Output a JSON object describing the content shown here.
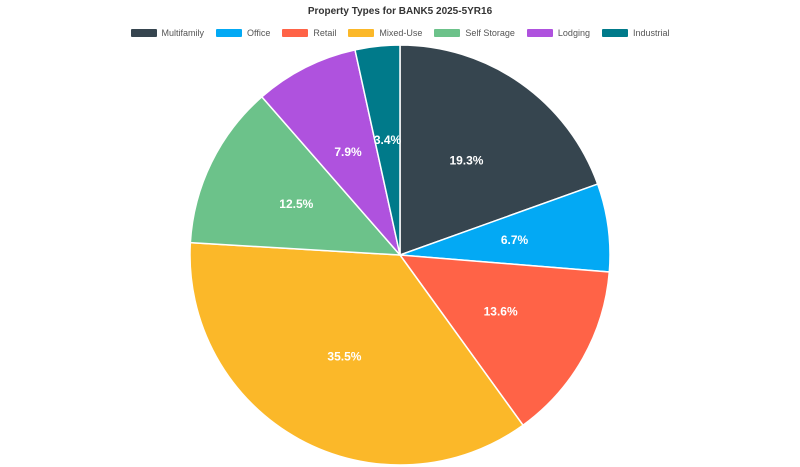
{
  "chart_data": {
    "type": "pie",
    "title": "Property Types for BANK5 2025-5YR16",
    "legend_placement": "top",
    "slices": [
      {
        "label": "Multifamily",
        "value": 19.3,
        "value_label": "19.3%",
        "color": "#36454f"
      },
      {
        "label": "Office",
        "value": 6.7,
        "value_label": "6.7%",
        "color": "#03a9f4"
      },
      {
        "label": "Retail",
        "value": 13.6,
        "value_label": "13.6%",
        "color": "#ff6347"
      },
      {
        "label": "Mixed-Use",
        "value": 35.5,
        "value_label": "35.5%",
        "color": "#fbb829"
      },
      {
        "label": "Self Storage",
        "value": 12.5,
        "value_label": "12.5%",
        "color": "#6cc28a"
      },
      {
        "label": "Lodging",
        "value": 7.9,
        "value_label": "7.9%",
        "color": "#af52de"
      },
      {
        "label": "Industrial",
        "value": 3.4,
        "value_label": "3.4%",
        "color": "#007a8a"
      }
    ]
  }
}
